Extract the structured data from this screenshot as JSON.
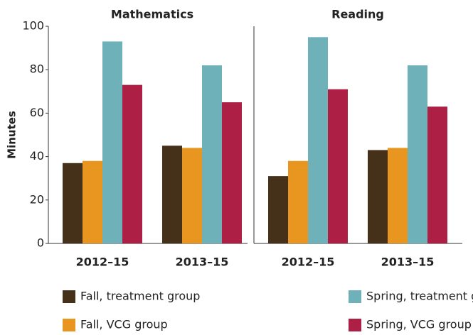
{
  "chart_data": [
    {
      "type": "bar",
      "title": "Mathematics",
      "ylabel": "Minutes",
      "categories": [
        "2012–15",
        "2013–15"
      ],
      "ylim": [
        0,
        100
      ],
      "yticks": [
        0,
        20,
        40,
        60,
        80,
        100
      ],
      "series": [
        {
          "name": "Fall, treatment group",
          "color": "#45301a",
          "values": [
            37,
            45
          ]
        },
        {
          "name": "Fall, VCG group",
          "color": "#e8961f",
          "values": [
            38,
            44
          ]
        },
        {
          "name": "Spring, treatment group",
          "color": "#6fb1b8",
          "values": [
            93,
            82
          ]
        },
        {
          "name": "Spring, VCG group",
          "color": "#ad1f45",
          "values": [
            73,
            65
          ]
        }
      ]
    },
    {
      "type": "bar",
      "title": "Reading",
      "categories": [
        "2012–15",
        "2013–15"
      ],
      "ylim": [
        0,
        100
      ],
      "series": [
        {
          "values": [
            31,
            43
          ]
        },
        {
          "values": [
            38,
            44
          ]
        },
        {
          "values": [
            95,
            82
          ]
        },
        {
          "values": [
            71,
            63
          ]
        }
      ]
    }
  ]
}
